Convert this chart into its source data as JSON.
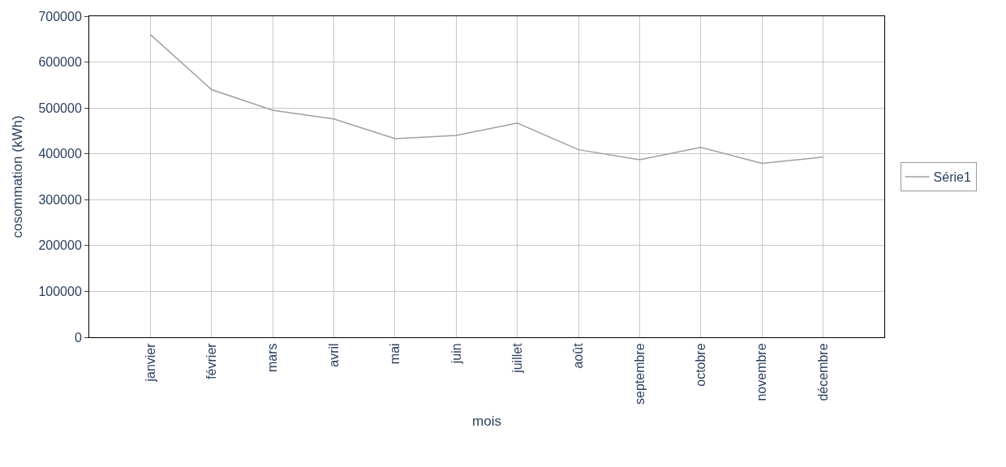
{
  "chart_data": {
    "type": "line",
    "xlabel": "mois",
    "ylabel": "cosommation (kWh)",
    "categories": [
      "janvier",
      "février",
      "mars",
      "avril",
      "mai",
      "juin",
      "juillet",
      "août",
      "septembre",
      "octobre",
      "novembre",
      "décembre"
    ],
    "series": [
      {
        "name": "Série1",
        "color": "#a0a0a0",
        "values": [
          660000,
          540000,
          495000,
          476000,
          433000,
          440000,
          467000,
          409000,
          387000,
          414000,
          379000,
          393000
        ]
      }
    ],
    "ylim": [
      0,
      700000
    ],
    "yticks": [
      0,
      100000,
      200000,
      300000,
      400000,
      500000,
      600000,
      700000
    ],
    "grid": true,
    "legend": "right",
    "marker": "none",
    "line_style": "solid"
  }
}
